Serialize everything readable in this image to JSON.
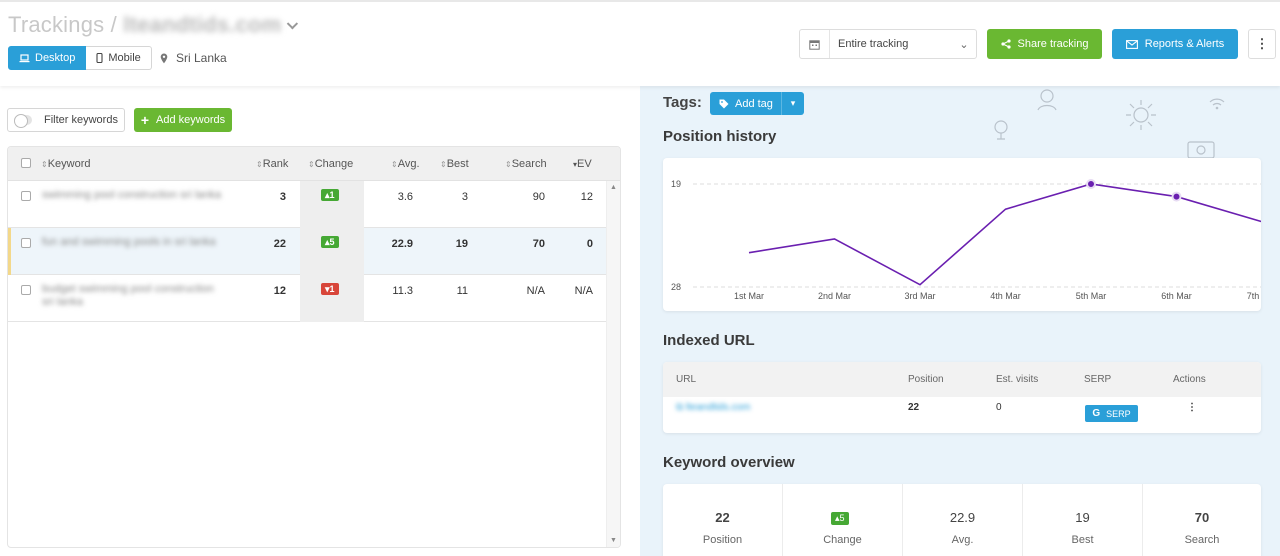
{
  "header": {
    "title_prefix": "Trackings / ",
    "title_domain": "lteandtids.com",
    "device_tabs": [
      {
        "label": "Desktop",
        "icon": "laptop-icon",
        "active": true
      },
      {
        "label": "Mobile",
        "icon": "mobile-icon",
        "active": false
      }
    ],
    "location": "Sri Lanka",
    "period_select": "Entire tracking",
    "share_button": "Share tracking",
    "reports_button": "Reports & Alerts",
    "more_button": "⋮"
  },
  "keywords_panel": {
    "filter_label": "Filter keywords",
    "add_label": "Add keywords",
    "columns": [
      "Keyword",
      "Rank",
      "Change",
      "Avg.",
      "Best",
      "Search",
      "EV"
    ],
    "rows": [
      {
        "keyword": "swimming pool construction sri lanka",
        "rank": "3",
        "change": "1",
        "change_dir": "up",
        "avg": "3.6",
        "best": "3",
        "search": "90",
        "ev": "12"
      },
      {
        "keyword": "fun and swimming pools in sri lanka",
        "rank": "22",
        "change": "5",
        "change_dir": "up",
        "avg": "22.9",
        "best": "19",
        "search": "70",
        "ev": "0"
      },
      {
        "keyword": "budget swimming pool construction sri lanka",
        "rank": "12",
        "change": "1",
        "change_dir": "down",
        "avg": "11.3",
        "best": "11",
        "search": "N/A",
        "ev": "N/A"
      }
    ]
  },
  "tags": {
    "label": "Tags:",
    "add_tag": "Add tag"
  },
  "position_history": {
    "title": "Position history"
  },
  "chart_data": {
    "type": "line",
    "categories": [
      "1st Mar",
      "2nd Mar",
      "3rd Mar",
      "4th Mar",
      "5th Mar",
      "6th Mar",
      "7th Mar"
    ],
    "values": [
      25,
      23.8,
      27.8,
      21.2,
      19,
      20.1,
      22.3
    ],
    "yticks": [
      "19",
      "28"
    ],
    "ylim": [
      19,
      28
    ],
    "inverted_y": true,
    "color": "#6a1fb0",
    "markers_on": [
      4,
      5
    ],
    "grid": true
  },
  "indexed_url": {
    "title": "Indexed URL",
    "columns": [
      "URL",
      "Position",
      "Est. visits",
      "SERP",
      "Actions"
    ],
    "row": {
      "url": "lteandtids.com",
      "position": "22",
      "visits": "0",
      "serp": "SERP",
      "actions": "⋮"
    }
  },
  "overview": {
    "title": "Keyword overview",
    "cells": [
      {
        "value": "22",
        "label": "Position"
      },
      {
        "value": "5",
        "label": "Change"
      },
      {
        "value": "22.9",
        "label": "Avg."
      },
      {
        "value": "19",
        "label": "Best"
      },
      {
        "value": "70",
        "label": "Search"
      }
    ]
  },
  "colors": {
    "green": "#6ab832",
    "blue": "#2a9fd8",
    "red": "#d8463a",
    "line": "#6a1fb0"
  }
}
